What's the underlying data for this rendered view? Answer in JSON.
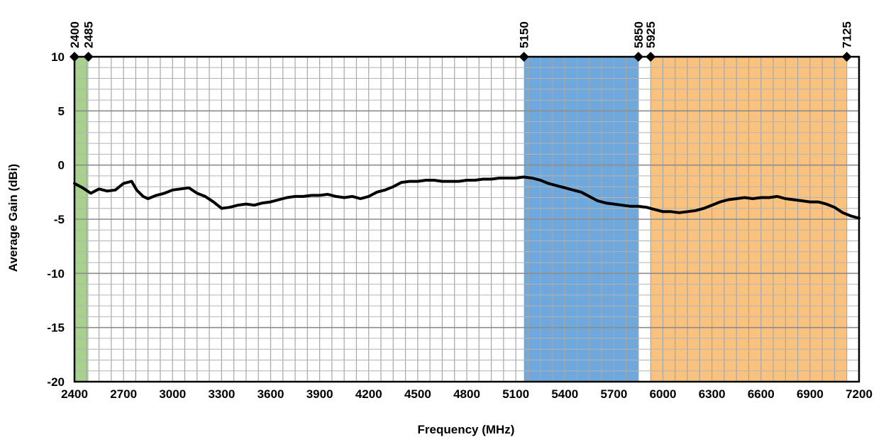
{
  "chart_data": {
    "type": "line",
    "xlabel": "Frequency (MHz)",
    "ylabel": "Average Gain (dBi)",
    "xlim": [
      2400,
      7200
    ],
    "ylim": [
      -20,
      10
    ],
    "x_ticks": [
      2400,
      2700,
      3000,
      3300,
      3600,
      3900,
      4200,
      4500,
      4800,
      5100,
      5400,
      5700,
      6000,
      6300,
      6600,
      6900,
      7200
    ],
    "x_tick_labels": [
      "2400",
      "2700",
      "3000",
      "3300",
      "3600",
      "3900",
      "4200",
      "4500",
      "4800",
      "5100",
      "5400",
      "5700",
      "6000",
      "6300",
      "6600",
      "6900",
      "7200"
    ],
    "y_ticks": [
      -20,
      -15,
      -10,
      -5,
      0,
      5,
      10
    ],
    "y_tick_labels": [
      "-20",
      "-15",
      "-10",
      "-5",
      "0",
      "5",
      "10"
    ],
    "x_minor_step": 75,
    "y_minor_step": 1,
    "grid": true,
    "bands": [
      {
        "from": 2400,
        "to": 2485,
        "color": "#a9d18e"
      },
      {
        "from": 5150,
        "to": 5850,
        "color": "#6fa8dc"
      },
      {
        "from": 5925,
        "to": 7125,
        "color": "#f9c27f"
      }
    ],
    "band_markers": [
      {
        "x": 2400,
        "label": "2400"
      },
      {
        "x": 2485,
        "label": "2485"
      },
      {
        "x": 5150,
        "label": "5150"
      },
      {
        "x": 5850,
        "label": "5850"
      },
      {
        "x": 5925,
        "label": "5925"
      },
      {
        "x": 7125,
        "label": "7125"
      }
    ],
    "series": [
      {
        "color": "#000000",
        "x": [
          2400,
          2450,
          2500,
          2550,
          2600,
          2650,
          2700,
          2750,
          2780,
          2820,
          2850,
          2900,
          2950,
          3000,
          3050,
          3100,
          3150,
          3200,
          3250,
          3300,
          3350,
          3400,
          3450,
          3500,
          3550,
          3600,
          3650,
          3700,
          3750,
          3800,
          3850,
          3900,
          3950,
          4000,
          4050,
          4100,
          4150,
          4200,
          4250,
          4300,
          4350,
          4400,
          4450,
          4500,
          4550,
          4600,
          4650,
          4700,
          4750,
          4800,
          4850,
          4900,
          4950,
          5000,
          5050,
          5100,
          5150,
          5200,
          5250,
          5300,
          5350,
          5400,
          5450,
          5500,
          5550,
          5600,
          5650,
          5700,
          5750,
          5800,
          5850,
          5900,
          5950,
          6000,
          6050,
          6100,
          6150,
          6200,
          6250,
          6300,
          6350,
          6400,
          6450,
          6500,
          6550,
          6600,
          6650,
          6700,
          6750,
          6800,
          6850,
          6900,
          6950,
          7000,
          7050,
          7100,
          7150,
          7200
        ],
        "y": [
          -1.7,
          -2.1,
          -2.6,
          -2.2,
          -2.4,
          -2.3,
          -1.7,
          -1.5,
          -2.3,
          -2.9,
          -3.1,
          -2.8,
          -2.6,
          -2.3,
          -2.2,
          -2.1,
          -2.6,
          -2.9,
          -3.4,
          -4.0,
          -3.9,
          -3.7,
          -3.6,
          -3.7,
          -3.5,
          -3.4,
          -3.2,
          -3.0,
          -2.9,
          -2.9,
          -2.8,
          -2.8,
          -2.7,
          -2.9,
          -3.0,
          -2.9,
          -3.1,
          -2.9,
          -2.5,
          -2.3,
          -2.0,
          -1.6,
          -1.5,
          -1.5,
          -1.4,
          -1.4,
          -1.5,
          -1.5,
          -1.5,
          -1.4,
          -1.4,
          -1.3,
          -1.3,
          -1.2,
          -1.2,
          -1.2,
          -1.1,
          -1.2,
          -1.4,
          -1.7,
          -1.9,
          -2.1,
          -2.3,
          -2.5,
          -2.9,
          -3.3,
          -3.5,
          -3.6,
          -3.7,
          -3.8,
          -3.8,
          -3.9,
          -4.1,
          -4.3,
          -4.3,
          -4.4,
          -4.3,
          -4.2,
          -4.0,
          -3.7,
          -3.4,
          -3.2,
          -3.1,
          -3.0,
          -3.1,
          -3.0,
          -3.0,
          -2.9,
          -3.1,
          -3.2,
          -3.3,
          -3.4,
          -3.4,
          -3.6,
          -3.9,
          -4.4,
          -4.7,
          -4.9
        ]
      }
    ]
  }
}
